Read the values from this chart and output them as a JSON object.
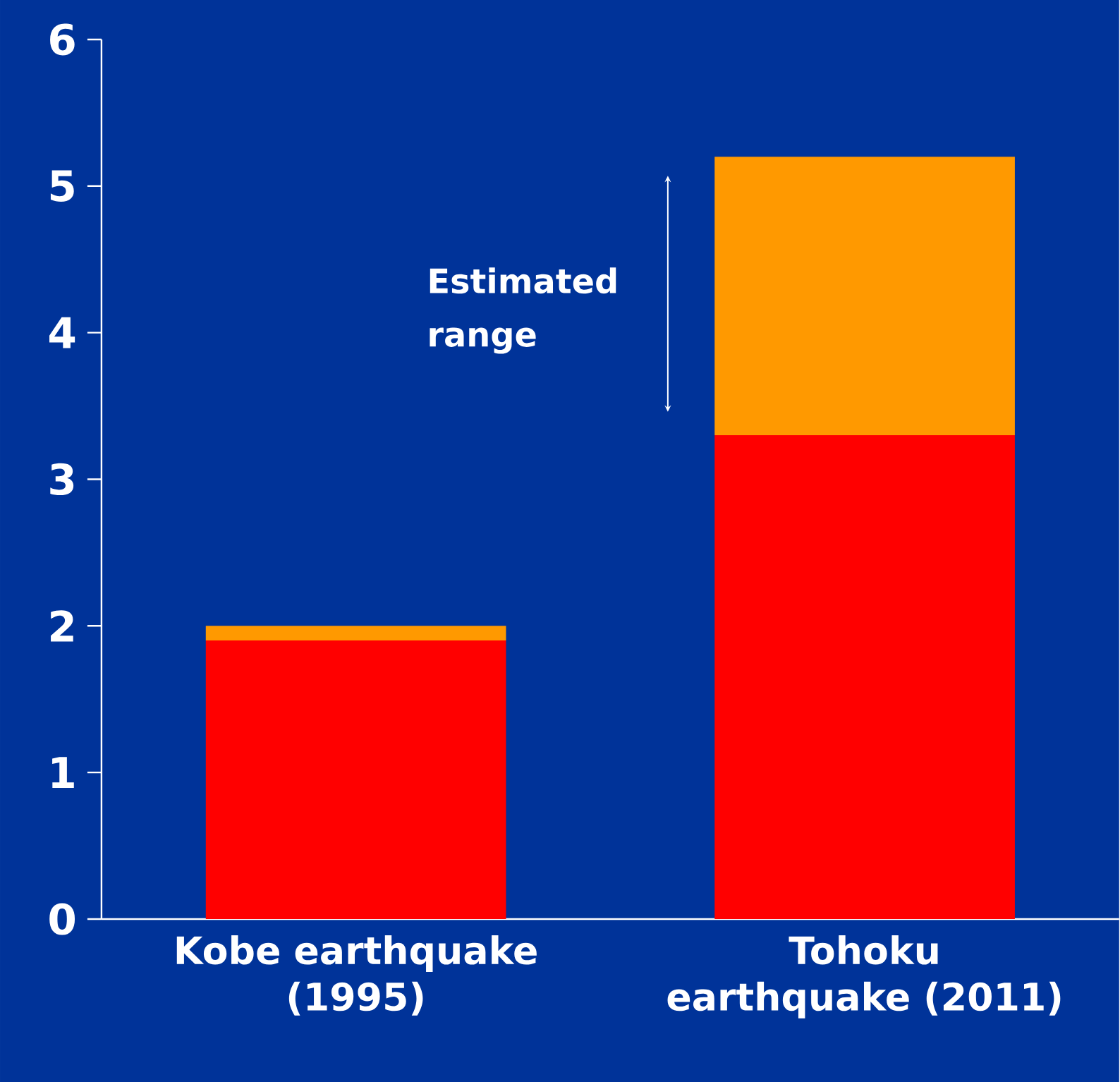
{
  "chart_data": {
    "type": "bar",
    "stacked": true,
    "categories": [
      "Kobe earthquake (1995)",
      "Tohoku earthquake (2011)"
    ],
    "series": [
      {
        "color": "#ff0000",
        "values": [
          1.9,
          3.3
        ]
      },
      {
        "color": "#ff9900",
        "values": [
          0.1,
          1.9
        ]
      }
    ],
    "ylim": [
      0,
      6
    ],
    "yticks": [
      0,
      1,
      2,
      3,
      4,
      5,
      6
    ],
    "annotations": [
      "Estimated range"
    ]
  }
}
